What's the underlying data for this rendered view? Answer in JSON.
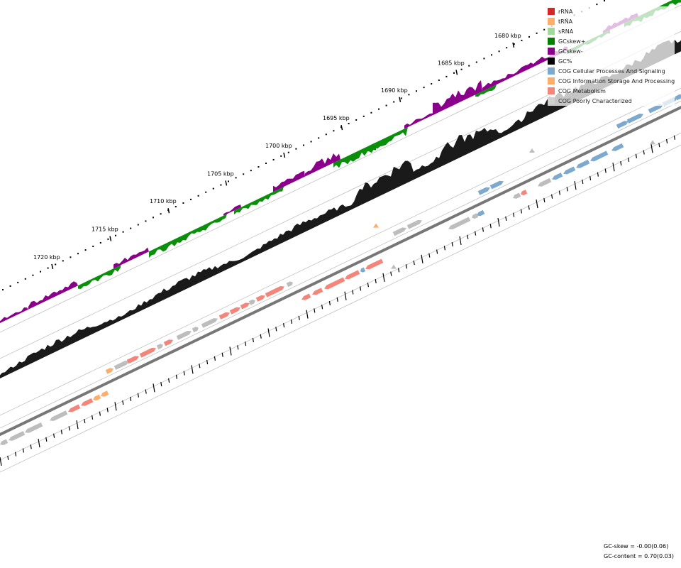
{
  "ruler": {
    "labels": [
      "1680 kbp",
      "1685 kbp",
      "1690 kbp",
      "1695 kbp",
      "1700 kbp",
      "1705 kbp",
      "1710 kbp",
      "1715 kbp",
      "1720 kbp"
    ]
  },
  "legend": {
    "items": [
      {
        "label": "rRNA",
        "color": "#d62728"
      },
      {
        "label": "tRNA",
        "color": "#fdae6b"
      },
      {
        "label": "sRNA",
        "color": "#a1d99b"
      },
      {
        "label": "GCskew+",
        "color": "#008000"
      },
      {
        "label": "GCskew-",
        "color": "#8b008b"
      },
      {
        "label": "GC%",
        "color": "#000000"
      },
      {
        "label": "COG Cellular Processes And Signaling",
        "color": "#7ea9cf"
      },
      {
        "label": "COG Information Storage And Processing",
        "color": "#fdae6b"
      },
      {
        "label": "COG Metabolism",
        "color": "#f4857a"
      },
      {
        "label": "COG Poorly Characterized",
        "color": "#d0d0d0"
      }
    ]
  },
  "stats": {
    "gc_skew": "GC-skew = -0.00(0.06)",
    "gc_content": "GC-content = 0.70(0.03)"
  },
  "colors": {
    "skew_positive": "#0a8f0a",
    "skew_negative": "#8b008b",
    "gc_content": "#1a1a1a",
    "backbone": "#777777",
    "guide": "#bbbbbb"
  }
}
